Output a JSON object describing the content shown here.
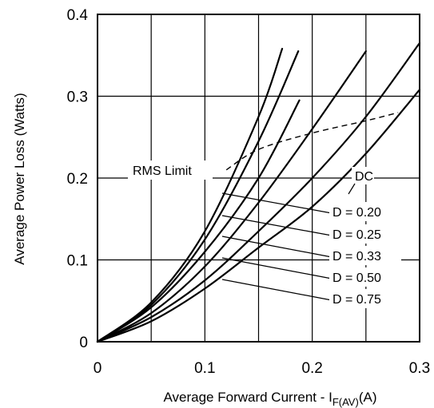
{
  "chart_data": {
    "type": "line",
    "title": "",
    "xlabel": "Average Forward Current - I",
    "xlabel_sub": "F(AV)",
    "xlabel_unit": "(A)",
    "ylabel": "Average Power Loss (Watts)",
    "xlim": [
      0,
      0.3
    ],
    "ylim": [
      0,
      0.4
    ],
    "x_ticks": [
      0,
      0.05,
      0.1,
      0.15,
      0.2,
      0.25,
      0.3
    ],
    "y_ticks": [
      0,
      0.1,
      0.2,
      0.3,
      0.4
    ],
    "x_tick_labels": [
      {
        "value": 0,
        "label": "0"
      },
      {
        "value": 0.1,
        "label": "0.1"
      },
      {
        "value": 0.2,
        "label": "0.2"
      },
      {
        "value": 0.3,
        "label": "0.3"
      }
    ],
    "y_tick_labels": [
      {
        "value": 0,
        "label": "0"
      },
      {
        "value": 0.1,
        "label": "0.1"
      },
      {
        "value": 0.2,
        "label": "0.2"
      },
      {
        "value": 0.3,
        "label": "0.3"
      },
      {
        "value": 0.4,
        "label": "0.4"
      }
    ],
    "grid": true,
    "series": [
      {
        "name": "D = 0.20",
        "x": [
          0,
          0.05,
          0.1,
          0.15,
          0.172
        ],
        "y": [
          0,
          0.048,
          0.135,
          0.275,
          0.358
        ]
      },
      {
        "name": "D = 0.25",
        "x": [
          0,
          0.05,
          0.1,
          0.15,
          0.187
        ],
        "y": [
          0,
          0.045,
          0.125,
          0.245,
          0.355
        ]
      },
      {
        "name": "D = 0.33",
        "x": [
          0,
          0.05,
          0.1,
          0.15,
          0.188
        ],
        "y": [
          0,
          0.042,
          0.11,
          0.2,
          0.295
        ]
      },
      {
        "name": "D = 0.50",
        "x": [
          0,
          0.05,
          0.1,
          0.15,
          0.2,
          0.25
        ],
        "y": [
          0,
          0.035,
          0.092,
          0.17,
          0.26,
          0.355
        ]
      },
      {
        "name": "D = 0.75",
        "x": [
          0,
          0.05,
          0.1,
          0.15,
          0.2,
          0.25,
          0.3
        ],
        "y": [
          0,
          0.03,
          0.075,
          0.135,
          0.2,
          0.275,
          0.365
        ]
      },
      {
        "name": "DC",
        "x": [
          0,
          0.05,
          0.1,
          0.15,
          0.2,
          0.25,
          0.3
        ],
        "y": [
          0,
          0.025,
          0.065,
          0.115,
          0.165,
          0.23,
          0.308
        ]
      }
    ],
    "rms_limit": {
      "label": "RMS Limit",
      "x": [
        0.12,
        0.15,
        0.2,
        0.25,
        0.28
      ],
      "y": [
        0.21,
        0.235,
        0.255,
        0.27,
        0.28
      ]
    },
    "annotations": [
      {
        "text": "DC",
        "target": "DC"
      },
      {
        "text": "D = 0.20",
        "target": "D = 0.20"
      },
      {
        "text": "D = 0.25",
        "target": "D = 0.25"
      },
      {
        "text": "D = 0.33",
        "target": "D = 0.33"
      },
      {
        "text": "D = 0.50",
        "target": "D = 0.50"
      },
      {
        "text": "D = 0.75",
        "target": "D = 0.75"
      }
    ]
  }
}
